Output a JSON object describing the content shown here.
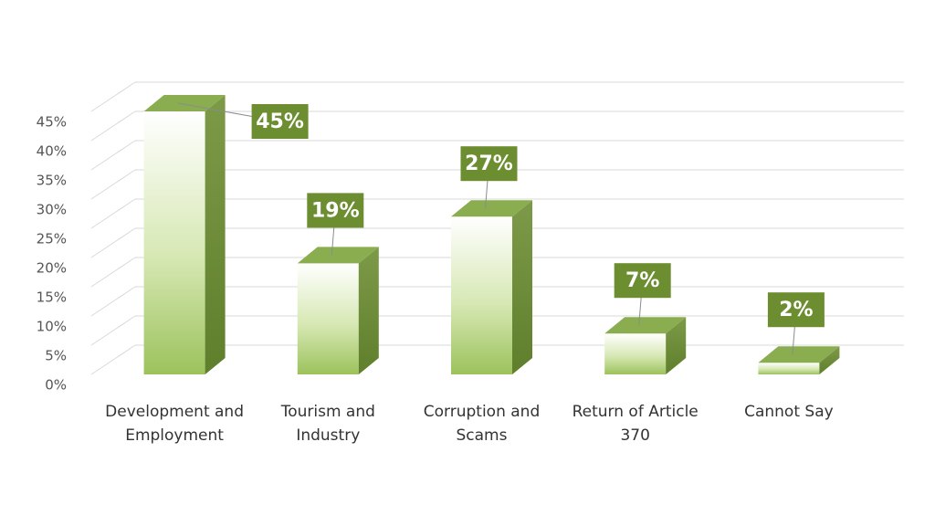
{
  "chart_data": {
    "type": "bar3d",
    "categories": [
      "Development and Employment",
      "Tourism and Industry",
      "Corruption and Scams",
      "Return of Article 370",
      "Cannot Say"
    ],
    "values": [
      45,
      19,
      27,
      7,
      2
    ],
    "value_labels": [
      "45%",
      "19%",
      "27%",
      "7%",
      "2%"
    ],
    "color": "#8aad4f",
    "ylim": [
      0,
      45
    ],
    "yticks": [
      {
        "value": 0,
        "label": "0%"
      },
      {
        "value": 5,
        "label": "5%"
      },
      {
        "value": 10,
        "label": "10%"
      },
      {
        "value": 15,
        "label": "15%"
      },
      {
        "value": 20,
        "label": "20%"
      },
      {
        "value": 25,
        "label": "25%"
      },
      {
        "value": 30,
        "label": "30%"
      },
      {
        "value": 35,
        "label": "35%"
      },
      {
        "value": 40,
        "label": "40%"
      },
      {
        "value": 45,
        "label": "45%"
      }
    ],
    "grid": true
  }
}
